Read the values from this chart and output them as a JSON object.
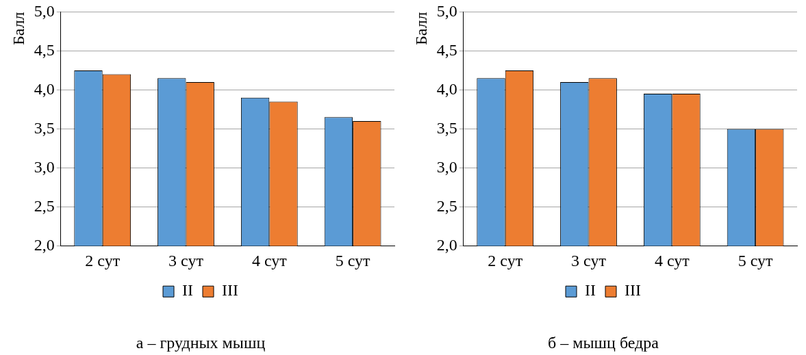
{
  "chart_data": [
    {
      "type": "bar",
      "title": "а – грудных мышц",
      "ylabel": "Балл",
      "categories": [
        "2 сут",
        "3 сут",
        "4 сут",
        "5 сут"
      ],
      "series": [
        {
          "name": "II",
          "color": "#5b9bd5",
          "values": [
            4.25,
            4.15,
            3.9,
            3.65
          ]
        },
        {
          "name": "III",
          "color": "#ed7d31",
          "values": [
            4.2,
            4.1,
            3.85,
            3.6
          ]
        }
      ],
      "ylim": [
        2,
        5
      ],
      "yticks": [
        {
          "value": 2,
          "label": "2,0"
        },
        {
          "value": 2.5,
          "label": "2,5"
        },
        {
          "value": 3,
          "label": "3,0"
        },
        {
          "value": 3.5,
          "label": "3,5"
        },
        {
          "value": 4,
          "label": "4,0"
        },
        {
          "value": 4.5,
          "label": "4,5"
        },
        {
          "value": 5,
          "label": "5,0"
        }
      ],
      "grid": "y",
      "legend": "bottom"
    },
    {
      "type": "bar",
      "title": "б – мышц бедра",
      "ylabel": "Балл",
      "categories": [
        "2 сут",
        "3 сут",
        "4 сут",
        "5 сут"
      ],
      "series": [
        {
          "name": "II",
          "color": "#5b9bd5",
          "values": [
            4.15,
            4.1,
            3.95,
            3.5
          ]
        },
        {
          "name": "III",
          "color": "#ed7d31",
          "values": [
            4.25,
            4.15,
            3.95,
            3.5
          ]
        }
      ],
      "ylim": [
        2,
        5
      ],
      "yticks": [
        {
          "value": 2,
          "label": "2,0"
        },
        {
          "value": 2.5,
          "label": "2,5"
        },
        {
          "value": 3,
          "label": "3,0"
        },
        {
          "value": 3.5,
          "label": "3,5"
        },
        {
          "value": 4,
          "label": "4,0"
        },
        {
          "value": 4.5,
          "label": "4,5"
        },
        {
          "value": 5,
          "label": "5,0"
        }
      ],
      "grid": "y",
      "legend": "bottom"
    }
  ]
}
